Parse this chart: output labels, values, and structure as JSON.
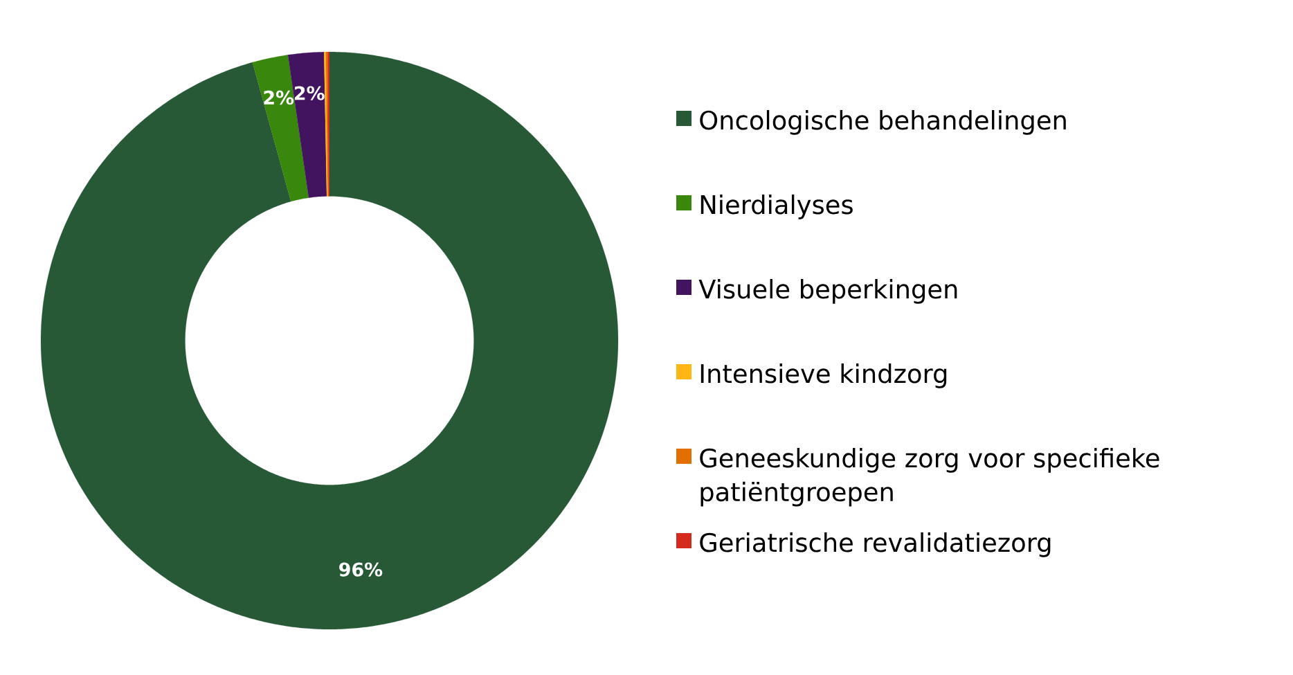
{
  "chart_data": {
    "type": "donut",
    "categories": [
      "Oncologische behandelingen",
      "Nierdialyses",
      "Visuele beperkingen",
      "Intensieve kindzorg",
      "Geneeskundige zorg voor specifieke patiëntgroepen",
      "Geriatrische revalidatiezorg"
    ],
    "values": [
      95.7,
      2,
      2,
      0.1,
      0.1,
      0.1
    ],
    "colors": [
      "#275937",
      "#39870c",
      "#42145f",
      "#ffb612",
      "#e17000",
      "#d52b1e"
    ],
    "value_labels": [
      "96%",
      "2%",
      "2%",
      null,
      null,
      null
    ],
    "legend": "right"
  }
}
